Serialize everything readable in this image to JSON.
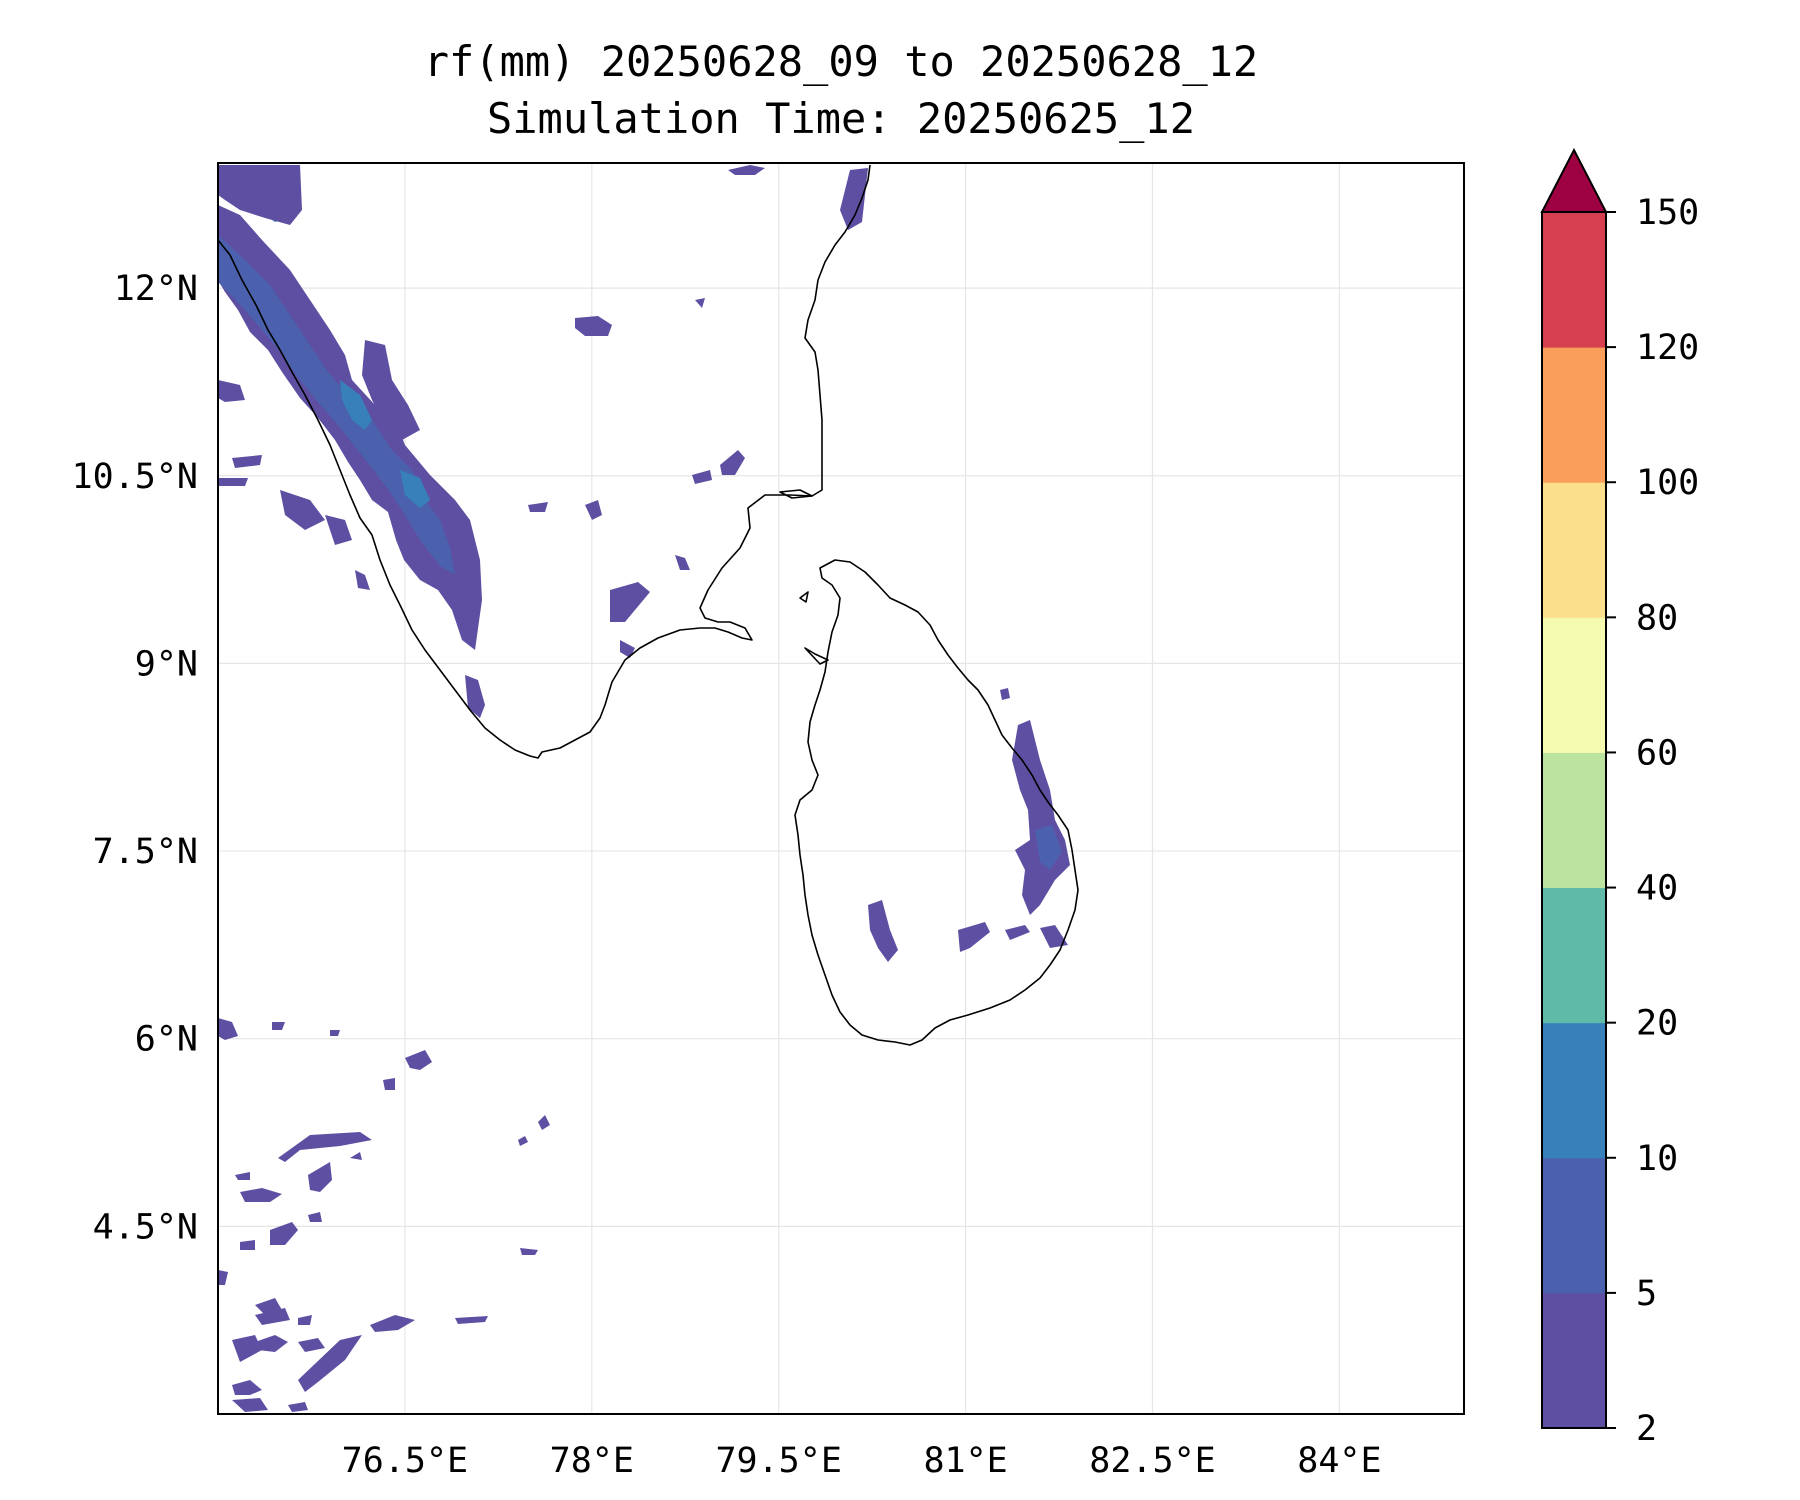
{
  "title": {
    "line1": "rf(mm) 20250628_09 to 20250628_12",
    "line2": "Simulation Time: 20250625_12"
  },
  "map": {
    "lon_range": [
      75.0,
      85.0
    ],
    "lat_range": [
      3.0,
      13.0
    ],
    "gridlines": true,
    "x_ticks": [
      {
        "value": 76.5,
        "label": "76.5°E"
      },
      {
        "value": 78.0,
        "label": "78°E"
      },
      {
        "value": 79.5,
        "label": "79.5°E"
      },
      {
        "value": 81.0,
        "label": "81°E"
      },
      {
        "value": 82.5,
        "label": "82.5°E"
      },
      {
        "value": 84.0,
        "label": "84°E"
      }
    ],
    "y_ticks": [
      {
        "value": 12.0,
        "label": "12°N"
      },
      {
        "value": 10.5,
        "label": "10.5°N"
      },
      {
        "value": 9.0,
        "label": "9°N"
      },
      {
        "value": 7.5,
        "label": "7.5°N"
      },
      {
        "value": 6.0,
        "label": "6°N"
      },
      {
        "value": 4.5,
        "label": "4.5°N"
      }
    ]
  },
  "colorbar": {
    "levels": [
      2,
      5,
      10,
      20,
      40,
      60,
      80,
      100,
      120,
      150
    ],
    "labels": [
      "2",
      "5",
      "10",
      "20",
      "40",
      "60",
      "80",
      "100",
      "120",
      "150"
    ],
    "colors": [
      "#5e4fa2",
      "#4b61ad",
      "#3880b9",
      "#5fbaa8",
      "#bce3a0",
      "#f4faaf",
      "#fcdf8d",
      "#f99f5b",
      "#d63f4f"
    ],
    "extend_color": "#9e0142",
    "extend": "max"
  },
  "colors": {
    "rain_low": "#5e4fa2",
    "rain_mid": "#4b61ad",
    "rain_high": "#3880b9",
    "coastline": "#000000"
  }
}
